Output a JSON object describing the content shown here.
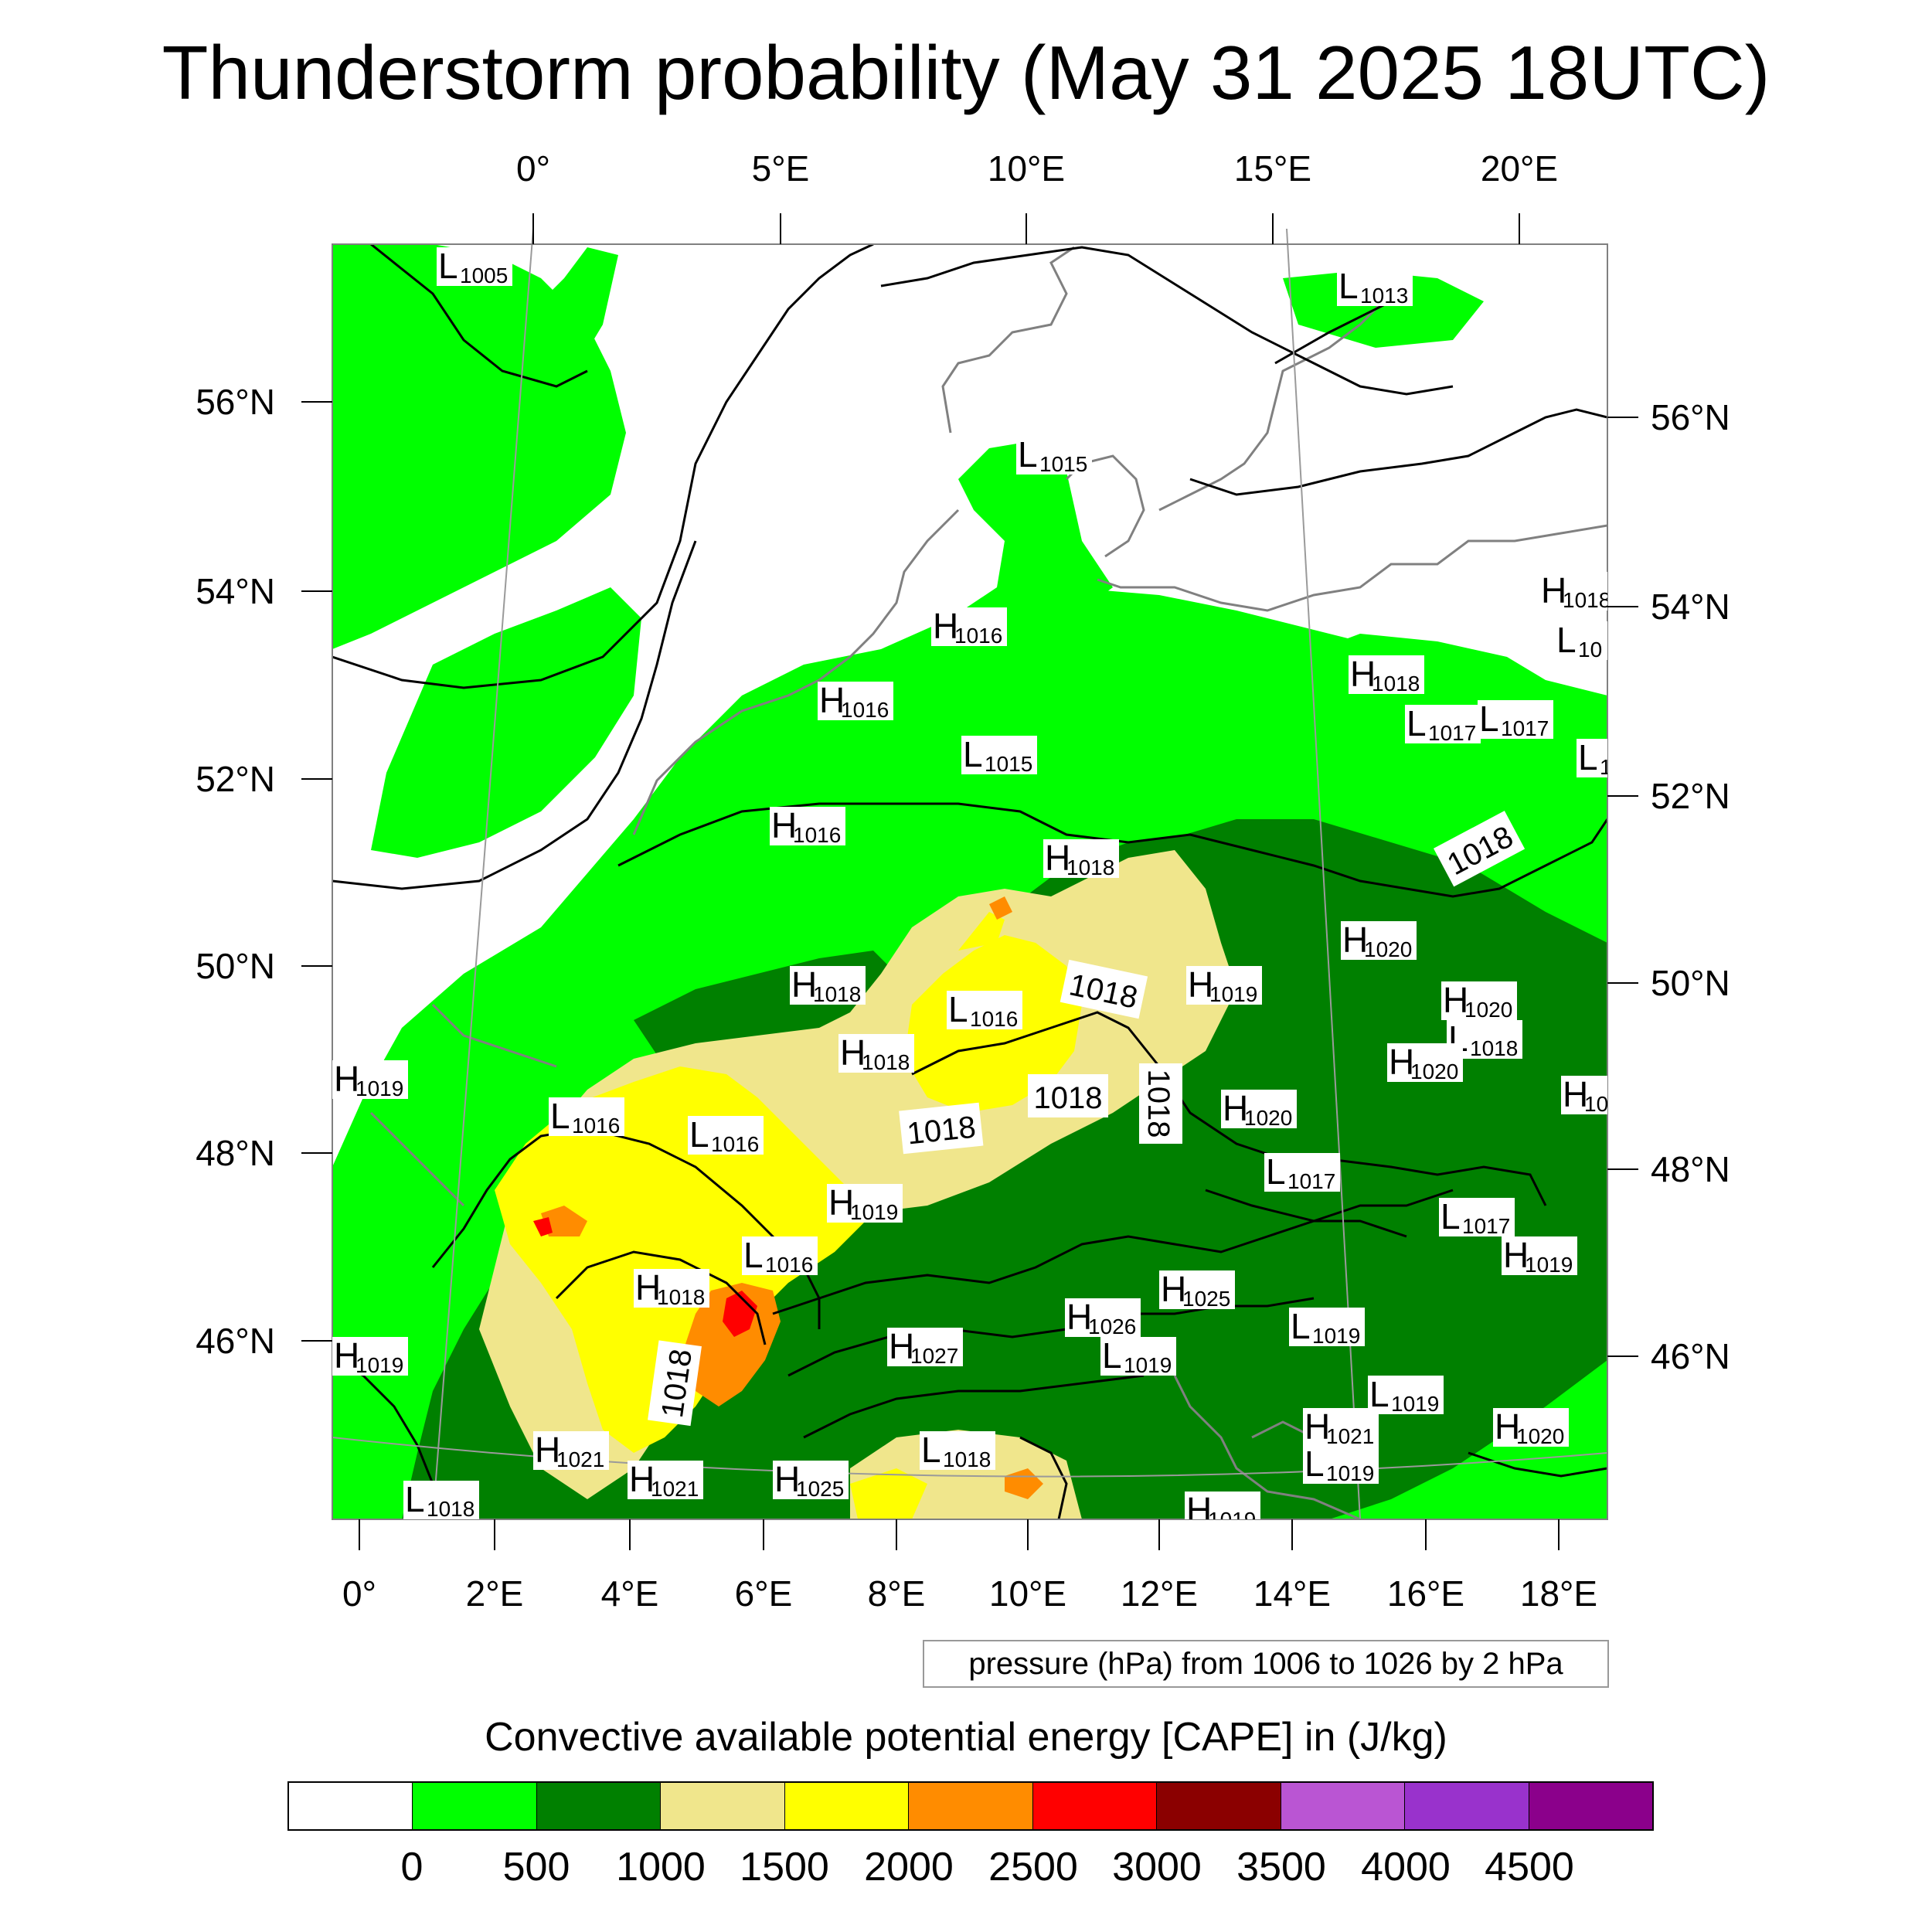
{
  "title": "Thunderstorm probability (May 31 2025 18UTC)",
  "pressure_note": "pressure (hPa) from 1006 to 1026 by 2 hPa",
  "legend": {
    "title": "Convective available potential energy [CAPE] in (J/kg)",
    "colors": [
      "#ffffff",
      "#00ff00",
      "#008000",
      "#f0e68c",
      "#ffff00",
      "#ff8c00",
      "#ff0000",
      "#8b0000",
      "#ba55d3",
      "#9932cc",
      "#8b008b"
    ],
    "labels": [
      "0",
      "500",
      "1000",
      "1500",
      "2000",
      "2500",
      "3000",
      "3500",
      "4000",
      "4500"
    ]
  },
  "axes": {
    "top_lon": [
      "0°",
      "5°E",
      "10°E",
      "15°E",
      "20°E"
    ],
    "bottom_lon": [
      "0°",
      "2°E",
      "4°E",
      "6°E",
      "8°E",
      "10°E",
      "12°E",
      "14°E",
      "16°E",
      "18°E"
    ],
    "left_lat": [
      "56°N",
      "54°N",
      "52°N",
      "50°N",
      "48°N",
      "46°N"
    ],
    "right_lat": [
      "56°N",
      "54°N",
      "52°N",
      "50°N",
      "48°N",
      "46°N"
    ]
  },
  "isobar_labels": [
    "1018",
    "1018",
    "1018",
    "1018",
    "1018",
    "1018"
  ],
  "pressure_centers": [
    {
      "type": "L",
      "value": "1005"
    },
    {
      "type": "L",
      "value": "1013"
    },
    {
      "type": "L",
      "value": "1015"
    },
    {
      "type": "H",
      "value": "1018"
    },
    {
      "type": "L",
      "value": "10"
    },
    {
      "type": "H",
      "value": "1016"
    },
    {
      "type": "H",
      "value": "1018"
    },
    {
      "type": "H",
      "value": "1016"
    },
    {
      "type": "L",
      "value": "1017"
    },
    {
      "type": "L",
      "value": "1017"
    },
    {
      "type": "L",
      "value": "1015"
    },
    {
      "type": "L",
      "value": "1"
    },
    {
      "type": "H",
      "value": "1016"
    },
    {
      "type": "H",
      "value": "1018"
    },
    {
      "type": "H",
      "value": "1020"
    },
    {
      "type": "H",
      "value": "1018"
    },
    {
      "type": "L",
      "value": "1016"
    },
    {
      "type": "H",
      "value": "1019"
    },
    {
      "type": "H",
      "value": "1020"
    },
    {
      "type": "L",
      "value": "1018"
    },
    {
      "type": "H",
      "value": "1018"
    },
    {
      "type": "H",
      "value": "1020"
    },
    {
      "type": "H",
      "value": "1019"
    },
    {
      "type": "H",
      "value": "10"
    },
    {
      "type": "L",
      "value": "1016"
    },
    {
      "type": "L",
      "value": "1016"
    },
    {
      "type": "H",
      "value": "1020"
    },
    {
      "type": "L",
      "value": "1017"
    },
    {
      "type": "H",
      "value": "1019"
    },
    {
      "type": "L",
      "value": "1017"
    },
    {
      "type": "L",
      "value": "1016"
    },
    {
      "type": "H",
      "value": "1019"
    },
    {
      "type": "H",
      "value": "1018"
    },
    {
      "type": "H",
      "value": "1025"
    },
    {
      "type": "H",
      "value": "1026"
    },
    {
      "type": "L",
      "value": "1019"
    },
    {
      "type": "H",
      "value": "1027"
    },
    {
      "type": "L",
      "value": "1019"
    },
    {
      "type": "H",
      "value": "1019"
    },
    {
      "type": "L",
      "value": "1019"
    },
    {
      "type": "H",
      "value": "1021"
    },
    {
      "type": "H",
      "value": "1021"
    },
    {
      "type": "L",
      "value": "1018"
    },
    {
      "type": "H",
      "value": "1025"
    },
    {
      "type": "H",
      "value": "1021"
    },
    {
      "type": "L",
      "value": "1019"
    },
    {
      "type": "H",
      "value": "1020"
    },
    {
      "type": "L",
      "value": "1018"
    },
    {
      "type": "H",
      "value": "1019"
    }
  ]
}
